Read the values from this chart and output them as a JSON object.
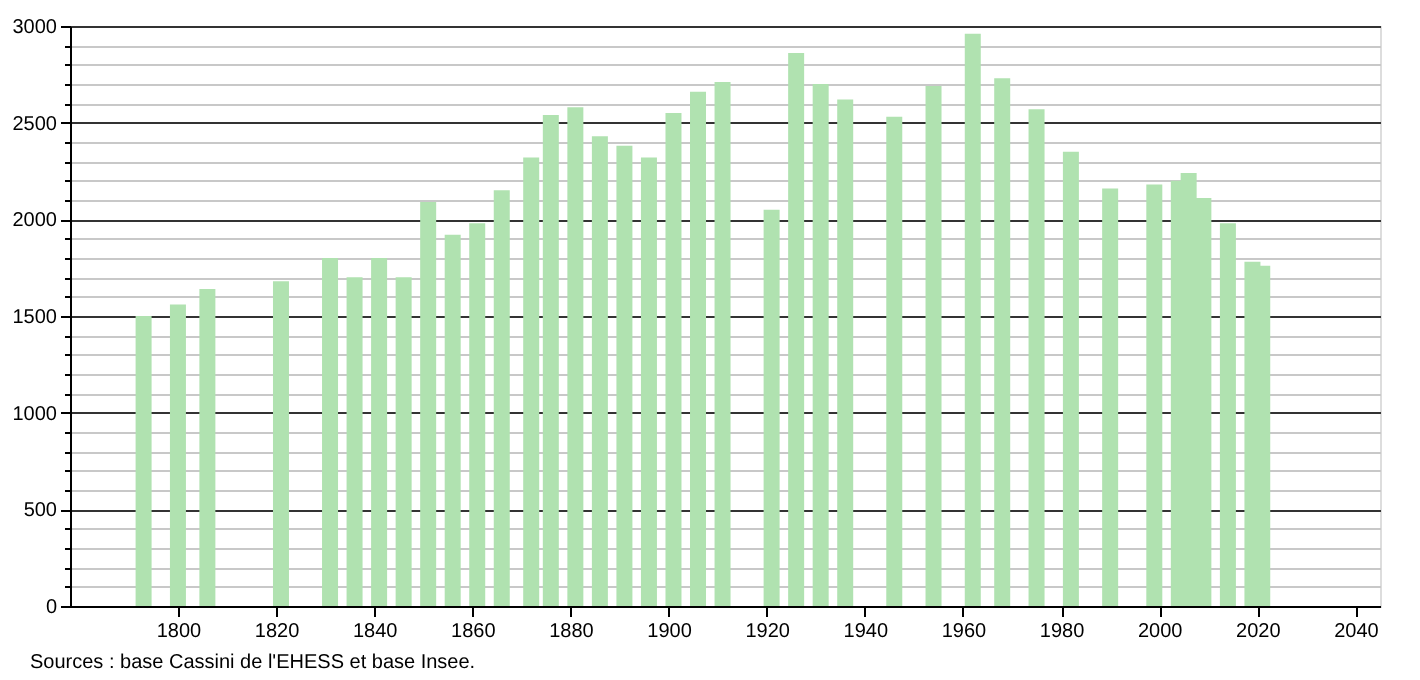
{
  "chart_data": {
    "type": "bar",
    "color": "#b0e2b0",
    "x": [
      1793,
      1800,
      1806,
      1821,
      1831,
      1836,
      1841,
      1846,
      1851,
      1856,
      1861,
      1866,
      1872,
      1876,
      1881,
      1886,
      1891,
      1896,
      1901,
      1906,
      1911,
      1921,
      1926,
      1931,
      1936,
      1946,
      1954,
      1962,
      1968,
      1975,
      1982,
      1990,
      1999,
      2004,
      2006,
      2009,
      2014,
      2019,
      2021
    ],
    "values": [
      1500,
      1560,
      1640,
      1680,
      1800,
      1700,
      1800,
      1700,
      2090,
      1920,
      1980,
      2150,
      2320,
      2540,
      2580,
      2430,
      2380,
      2320,
      2550,
      2660,
      2710,
      2050,
      2860,
      2700,
      2620,
      2530,
      2690,
      2960,
      2730,
      2570,
      2350,
      2160,
      2180,
      2200,
      2240,
      2110,
      1980,
      1780,
      1760
    ],
    "xlim": [
      1778,
      2045
    ],
    "xticks": [
      1800,
      1820,
      1840,
      1860,
      1880,
      1900,
      1920,
      1940,
      1960,
      1980,
      2000,
      2020,
      2040
    ],
    "ylim": [
      0,
      3000
    ],
    "yticks": [
      0,
      {
        "value": 100,
        "label": null
      },
      {
        "value": 200,
        "label": null
      },
      {
        "value": 300,
        "label": null
      },
      {
        "value": 400,
        "label": null
      },
      500,
      {
        "value": 600,
        "label": null
      },
      {
        "value": 700,
        "label": null
      },
      {
        "value": 800,
        "label": null
      },
      {
        "value": 900,
        "label": null
      },
      1000,
      {
        "value": 1100,
        "label": null
      },
      {
        "value": 1200,
        "label": null
      },
      {
        "value": 1300,
        "label": null
      },
      {
        "value": 1400,
        "label": null
      },
      1500,
      {
        "value": 1600,
        "label": null
      },
      {
        "value": 1700,
        "label": null
      },
      {
        "value": 1800,
        "label": null
      },
      {
        "value": 1900,
        "label": null
      },
      2000,
      {
        "value": 2100,
        "label": null
      },
      {
        "value": 2200,
        "label": null
      },
      {
        "value": 2300,
        "label": null
      },
      {
        "value": 2400,
        "label": null
      },
      2500,
      {
        "value": 2600,
        "label": null
      },
      {
        "value": 2700,
        "label": null
      },
      {
        "value": 2800,
        "label": null
      },
      {
        "value": 2900,
        "label": null
      },
      3000
    ],
    "grid": "y",
    "annotations": [
      "Sources : base Cassini de l'EHESS et base Insee."
    ]
  }
}
